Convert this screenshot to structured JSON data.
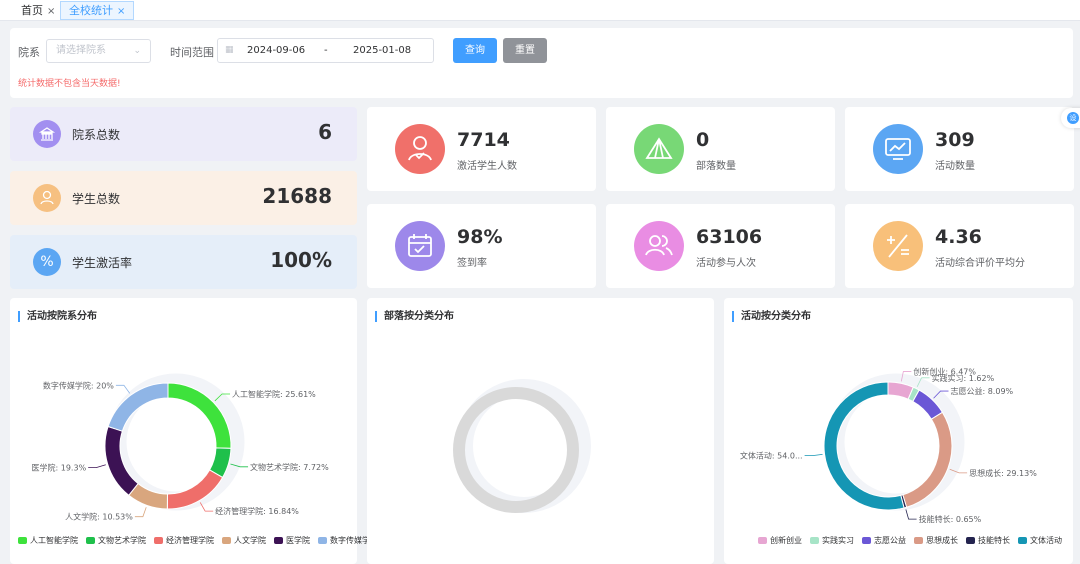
{
  "tabs": [
    {
      "label": "首页",
      "close": "×"
    },
    {
      "label": "全校统计",
      "close": "×"
    }
  ],
  "filter": {
    "dept_label": "院系",
    "dept_placeholder": "请选择院系",
    "time_label": "时间范围",
    "start_date": "2024-09-06",
    "separator": "-",
    "end_date": "2025-01-08",
    "query_label": "查询",
    "reset_label": "重置",
    "warning": "统计数据不包含当天数据!"
  },
  "left_stats": [
    {
      "label": "院系总数",
      "value": "6",
      "bg": "#ecebf9",
      "icon_color": "#a28ff0",
      "icon": "bank-icon"
    },
    {
      "label": "学生总数",
      "value": "21688",
      "bg": "#fbf0e6",
      "icon_color": "#f6c081",
      "icon": "user-icon"
    },
    {
      "label": "学生激活率",
      "value": "100%",
      "bg": "#e5eef9",
      "icon_color": "#5ba6f3",
      "icon": "percent-icon"
    }
  ],
  "right_stats": [
    {
      "value": "7714",
      "label": "激活学生人数",
      "icon_color": "#f0706a",
      "icon": "user-check-icon"
    },
    {
      "value": "0",
      "label": "部落数量",
      "icon_color": "#78d876",
      "icon": "tent-icon"
    },
    {
      "value": "309",
      "label": "活动数量",
      "icon_color": "#5ba6f3",
      "icon": "monitor-chart-icon"
    },
    {
      "value": "98%",
      "label": "签到率",
      "icon_color": "#9d88ea",
      "icon": "calendar-check-icon"
    },
    {
      "value": "63106",
      "label": "活动参与人次",
      "icon_color": "#e98de3",
      "icon": "users-icon"
    },
    {
      "value": "4.36",
      "label": "活动综合评价平均分",
      "icon_color": "#f8c07a",
      "icon": "calculator-icon"
    }
  ],
  "chart_data": [
    {
      "type": "pie",
      "title": "活动按院系分布",
      "categories": [
        "人工智能学院",
        "文物艺术学院",
        "经济管理学院",
        "人文学院",
        "医学院",
        "数字传媒学院"
      ],
      "values": [
        25.61,
        7.72,
        16.84,
        10.53,
        19.3,
        20
      ],
      "labels": [
        "人工智能学院: 25.61%",
        "文物艺术学院: 7.72%",
        "经济管理学院: 16.84%",
        "人文学院: 10.53%",
        "医学院: 19.3%",
        "数字传媒学院: 20%"
      ],
      "colors": [
        "#3ee23c",
        "#1fc04b",
        "#ef6e6a",
        "#d9a67e",
        "#3c1254",
        "#8fb5e6"
      ],
      "legend": "bottom"
    },
    {
      "type": "pie",
      "title": "部落按分类分布",
      "categories": [],
      "values": [],
      "labels": [],
      "colors": [
        "#d9d9d9"
      ],
      "legend": "none"
    },
    {
      "type": "pie",
      "title": "活动按分类分布",
      "categories": [
        "创新创业",
        "实践实习",
        "志愿公益",
        "思想成长",
        "技能特长",
        "文体活动"
      ],
      "values": [
        6.47,
        1.62,
        8.09,
        29.13,
        0.65,
        54.04
      ],
      "labels": [
        "创新创业: 6.47%",
        "实践实习: 1.62%",
        "志愿公益: 8.09%",
        "思想成长: 29.13%",
        "技能特长: 0.65%",
        "文体活动: 54.0..."
      ],
      "colors": [
        "#e7a6d2",
        "#a7e4c7",
        "#6b57d6",
        "#da9a86",
        "#24244f",
        "#1596b4"
      ],
      "legend": "bottom"
    }
  ]
}
